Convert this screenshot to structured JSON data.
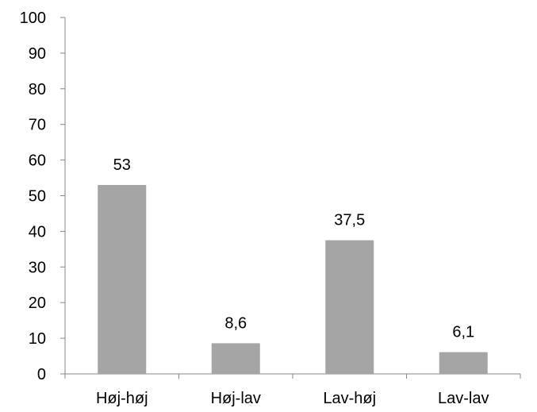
{
  "chart_data": {
    "type": "bar",
    "categories": [
      "Høj-høj",
      "Høj-lav",
      "Lav-høj",
      "Lav-lav"
    ],
    "values": [
      53,
      8.6,
      37.5,
      6.1
    ],
    "value_labels": [
      "53",
      "8,6",
      "37,5",
      "6,1"
    ],
    "title": "",
    "xlabel": "",
    "ylabel": "",
    "ylim": [
      0,
      100
    ],
    "yticks": [
      0,
      10,
      20,
      30,
      40,
      50,
      60,
      70,
      80,
      90,
      100
    ],
    "ytick_labels": [
      "0",
      "10",
      "20",
      "30",
      "40",
      "50",
      "60",
      "70",
      "80",
      "90",
      "100"
    ],
    "grid": false,
    "legend": "none",
    "bar_color": "#a5a5a5",
    "axis_color": "#888888"
  }
}
